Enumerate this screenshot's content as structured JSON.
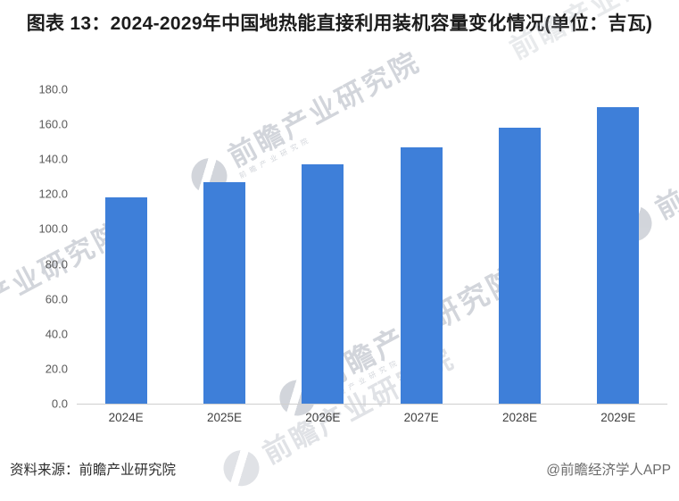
{
  "title": "图表 13：2024-2029年中国地热能直接利用装机容量变化情况(单位：吉瓦)",
  "footer": {
    "source": "资料来源：前瞻产业研究院",
    "credit": "@前瞻经济学人APP"
  },
  "watermark": {
    "text": "前瞻产业研究院"
  },
  "colors": {
    "bar": "#3e7fd9",
    "axis_line": "#cfcfcf",
    "tick_label": "#595959",
    "title_text": "#1c1c1c"
  },
  "chart_data": {
    "type": "bar",
    "title": "2024-2029年中国地热能直接利用装机容量变化情况",
    "unit": "吉瓦",
    "categories": [
      "2024E",
      "2025E",
      "2026E",
      "2027E",
      "2028E",
      "2029E"
    ],
    "values": [
      118,
      127,
      137,
      147,
      158,
      170
    ],
    "xlabel": "",
    "ylabel": "",
    "ylim": [
      0,
      180
    ],
    "ytick_step": 20,
    "ytick_format_decimals": 1,
    "grid": false,
    "legend": false
  }
}
